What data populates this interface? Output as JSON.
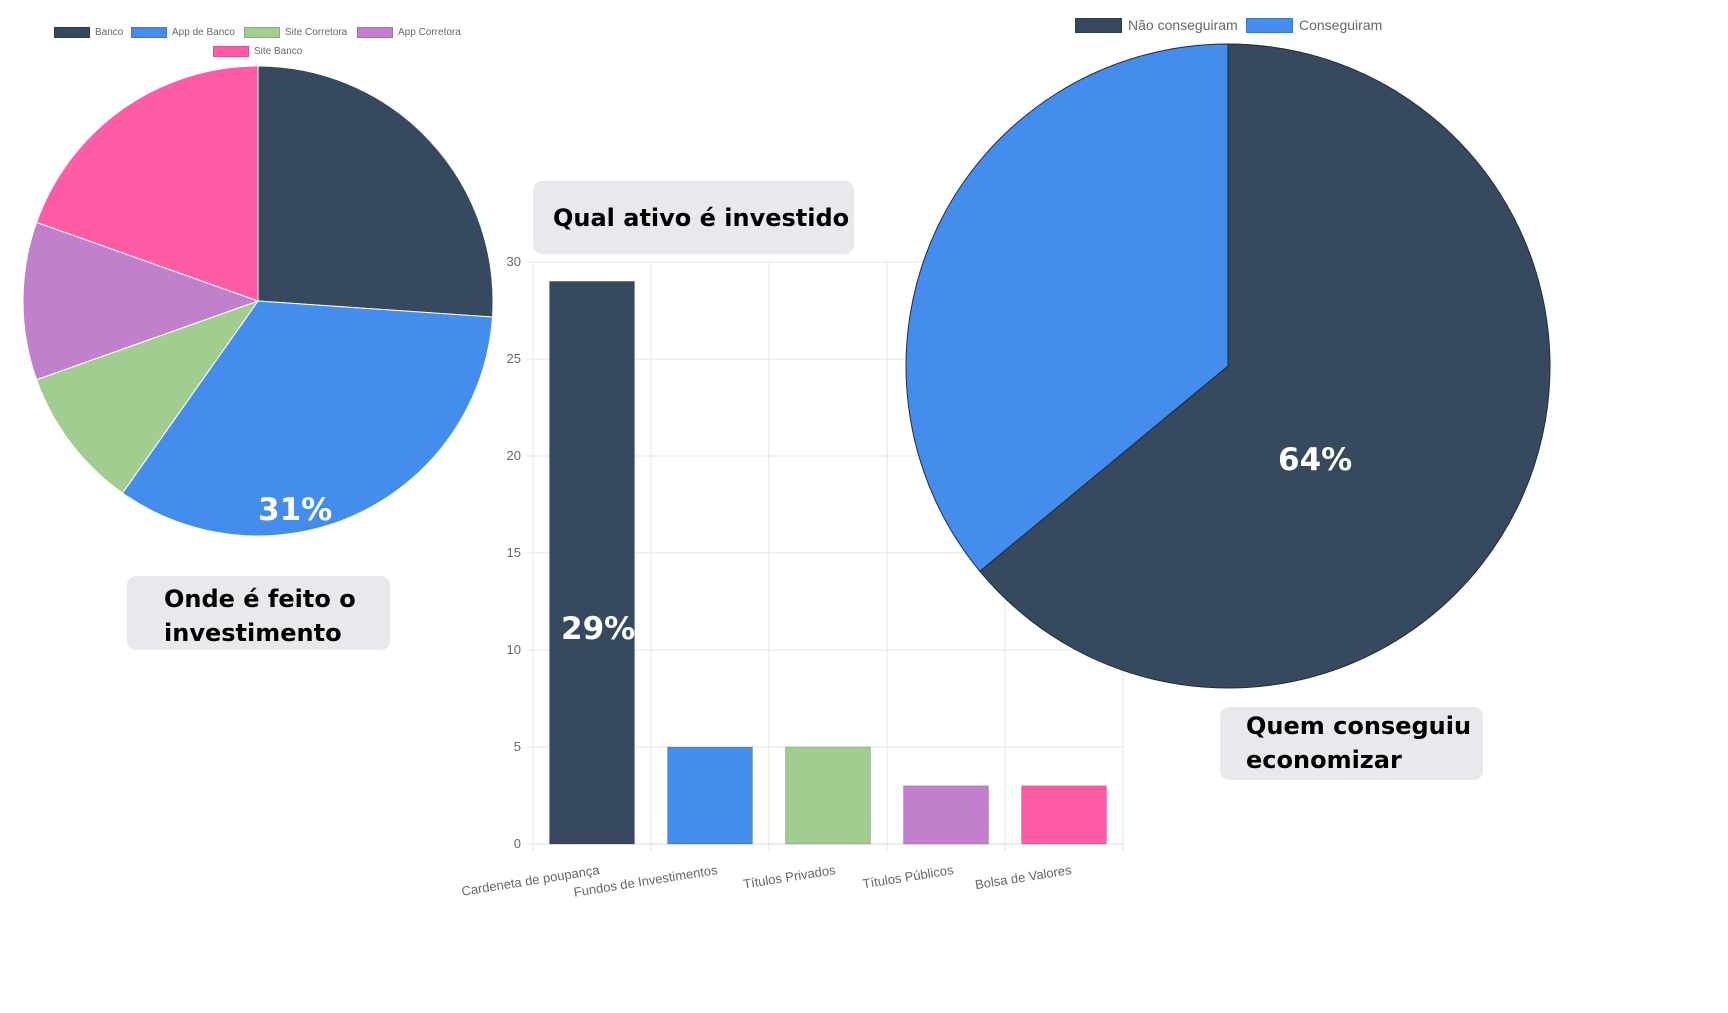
{
  "chart_data": [
    {
      "type": "pie",
      "title": "Onde é feito o investimento",
      "labels": [
        "Banco",
        "App de Banco",
        "Site Corretora",
        "App Corretora",
        "Site Banco"
      ],
      "values": [
        24,
        31,
        9,
        10,
        18
      ],
      "colors": [
        "#36495f",
        "#448ded",
        "#a1cd91",
        "#c17fcc",
        "#ff5ca6"
      ],
      "annotation": "31%",
      "legend_position": "top"
    },
    {
      "type": "bar",
      "title": "Qual ativo é investido",
      "categories": [
        "Cardeneta de poupança",
        "Fundos de Investimentos",
        "Títulos Privados",
        "Títulos Públicos",
        "Bolsa de Valores"
      ],
      "values": [
        29,
        5,
        5,
        3,
        3
      ],
      "colors": [
        "#36495f",
        "#448ded",
        "#a1cd91",
        "#c17fcc",
        "#ff5ca6"
      ],
      "ylim": [
        0,
        30
      ],
      "yticks": [
        0,
        5,
        10,
        15,
        20,
        25,
        30
      ],
      "grid": true,
      "annotation": "29%"
    },
    {
      "type": "pie",
      "title": "Quem conseguiu economizar",
      "labels": [
        "Não conseguiram",
        "Conseguiram"
      ],
      "values": [
        64,
        36
      ],
      "colors": [
        "#36495f",
        "#448ded"
      ],
      "annotation": "64%",
      "legend_position": "top"
    }
  ]
}
